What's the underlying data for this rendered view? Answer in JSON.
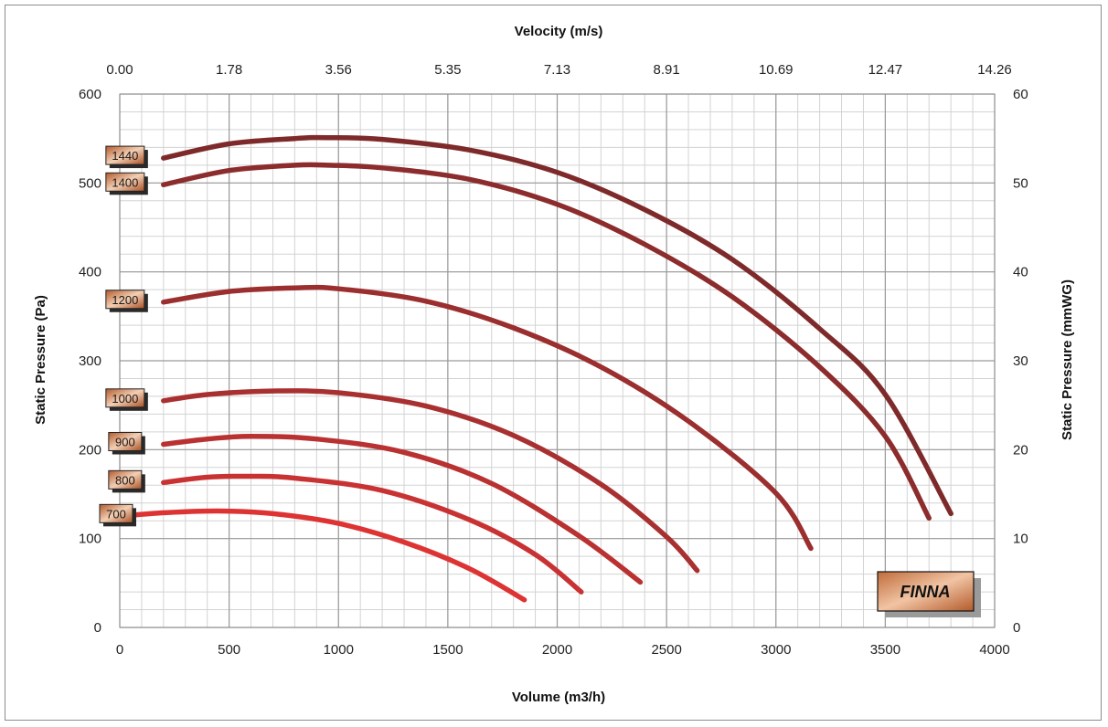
{
  "chart_data": {
    "type": "line",
    "title": "",
    "xlabel": "Volume (m3/h)",
    "ylabel": "Static Pressure (Pa)",
    "x2label": "Velocity (m/s)",
    "y2label": "Static Pressure (mmWG)",
    "xlim": [
      0,
      4000
    ],
    "ylim": [
      0,
      600
    ],
    "y2lim": [
      0,
      60
    ],
    "x_ticks": [
      0,
      500,
      1000,
      1500,
      2000,
      2500,
      3000,
      3500,
      4000
    ],
    "y_ticks": [
      0,
      100,
      200,
      300,
      400,
      500,
      600
    ],
    "y2_ticks": [
      0,
      10,
      20,
      30,
      40,
      50,
      60
    ],
    "x2_ticks": [
      "0.00",
      "1.78",
      "3.56",
      "5.35",
      "7.13",
      "8.91",
      "10.69",
      "12.47",
      "14.26"
    ],
    "grid": true,
    "series": [
      {
        "name": "1440",
        "color": "#7e2a2a",
        "x": [
          200,
          500,
          800,
          950,
          1200,
          1600,
          2000,
          2400,
          2800,
          3200,
          3500,
          3800
        ],
        "y": [
          528,
          544,
          550,
          551,
          549,
          537,
          512,
          470,
          414,
          336,
          262,
          128
        ]
      },
      {
        "name": "1400",
        "color": "#8c2c2c",
        "x": [
          200,
          500,
          800,
          950,
          1200,
          1600,
          2000,
          2400,
          2800,
          3200,
          3500,
          3700
        ],
        "y": [
          498,
          514,
          520,
          520,
          517,
          504,
          476,
          431,
          372,
          293,
          215,
          123
        ]
      },
      {
        "name": "1200",
        "color": "#9b2e2e",
        "x": [
          200,
          500,
          800,
          1000,
          1400,
          1800,
          2200,
          2600,
          3000,
          3160
        ],
        "y": [
          366,
          378,
          382,
          381,
          367,
          337,
          293,
          232,
          151,
          89
        ]
      },
      {
        "name": "1000",
        "color": "#a93030",
        "x": [
          200,
          400,
          700,
          1000,
          1400,
          1800,
          2200,
          2500,
          2640
        ],
        "y": [
          255,
          262,
          266,
          264,
          249,
          216,
          161,
          102,
          64
        ]
      },
      {
        "name": "900",
        "color": "#b93131",
        "x": [
          200,
          400,
          600,
          900,
          1300,
          1700,
          2100,
          2380
        ],
        "y": [
          206,
          212,
          215,
          212,
          197,
          162,
          103,
          51
        ]
      },
      {
        "name": "800",
        "color": "#c93232",
        "x": [
          200,
          400,
          600,
          800,
          1200,
          1600,
          1900,
          2110
        ],
        "y": [
          163,
          169,
          170,
          168,
          154,
          121,
          82,
          40
        ]
      },
      {
        "name": "700",
        "color": "#de3333",
        "x": [
          0,
          200,
          450,
          700,
          1000,
          1300,
          1600,
          1850
        ],
        "y": [
          125,
          129,
          131,
          128,
          117,
          96,
          66,
          31
        ]
      }
    ]
  },
  "brand": {
    "text": "FINNA"
  }
}
